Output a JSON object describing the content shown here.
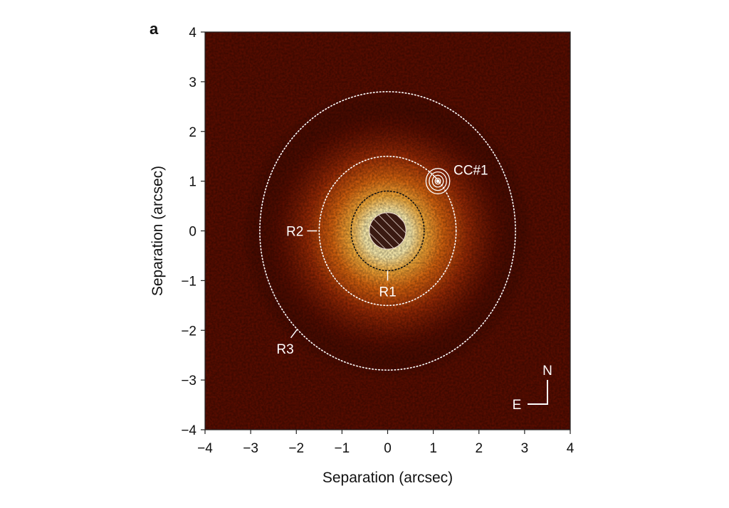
{
  "panel_label": "a",
  "chart_data": {
    "type": "heatmap",
    "xlabel": "Separation (arcsec)",
    "ylabel": "Separation (arcsec)",
    "xlim": [
      -4,
      4
    ],
    "ylim": [
      -4,
      4
    ],
    "xticks": [
      -4,
      -3,
      -2,
      -1,
      0,
      1,
      2,
      3,
      4
    ],
    "yticks": [
      -4,
      -3,
      -2,
      -1,
      0,
      1,
      2,
      3,
      4
    ],
    "tick_labels": [
      "−4",
      "−3",
      "−2",
      "−1",
      "0",
      "1",
      "2",
      "3",
      "4"
    ],
    "colormap": [
      "#000000",
      "#5a0d00",
      "#9e2c05",
      "#d8640f",
      "#f7ac3a",
      "#fff0b0"
    ],
    "grid": false,
    "rings": [
      {
        "label": "R1",
        "radius": 0.8,
        "color": "#111111"
      },
      {
        "label": "R2",
        "radius": 1.5,
        "color": "#ffffff"
      },
      {
        "label": "R3",
        "radius": 2.8,
        "color": "#ffffff"
      }
    ],
    "mask": {
      "radius": 0.4,
      "hatched": true
    },
    "companion": {
      "label": "CC#1",
      "x": 1.1,
      "y": 1.0
    },
    "compass": {
      "north": "N",
      "east": "E"
    }
  }
}
